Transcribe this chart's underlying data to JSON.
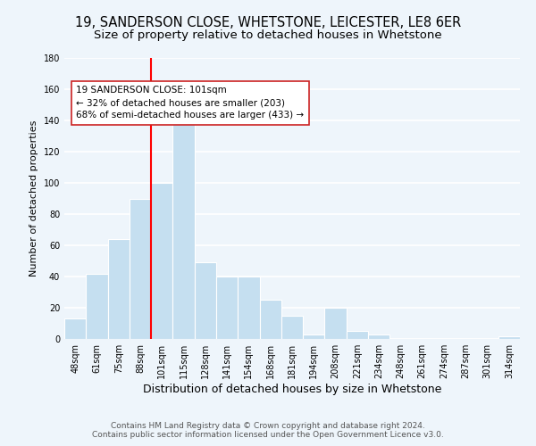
{
  "title_line1": "19, SANDERSON CLOSE, WHETSTONE, LEICESTER, LE8 6ER",
  "title_line2": "Size of property relative to detached houses in Whetstone",
  "xlabel": "Distribution of detached houses by size in Whetstone",
  "ylabel": "Number of detached properties",
  "bin_labels": [
    "48sqm",
    "61sqm",
    "75sqm",
    "88sqm",
    "101sqm",
    "115sqm",
    "128sqm",
    "141sqm",
    "154sqm",
    "168sqm",
    "181sqm",
    "194sqm",
    "208sqm",
    "221sqm",
    "234sqm",
    "248sqm",
    "261sqm",
    "274sqm",
    "287sqm",
    "301sqm",
    "314sqm"
  ],
  "bar_values": [
    13,
    42,
    64,
    90,
    100,
    139,
    49,
    40,
    40,
    25,
    15,
    3,
    20,
    5,
    3,
    0,
    0,
    0,
    0,
    0,
    2
  ],
  "bar_color": "#c5dff0",
  "vline_color": "red",
  "vline_x_index": 4,
  "annotation_lines": [
    "19 SANDERSON CLOSE: 101sqm",
    "← 32% of detached houses are smaller (203)",
    "68% of semi-detached houses are larger (433) →"
  ],
  "ylim": [
    0,
    180
  ],
  "yticks": [
    0,
    20,
    40,
    60,
    80,
    100,
    120,
    140,
    160,
    180
  ],
  "footer_line1": "Contains HM Land Registry data © Crown copyright and database right 2024.",
  "footer_line2": "Contains public sector information licensed under the Open Government Licence v3.0.",
  "background_color": "#eef5fb",
  "grid_color": "#ffffff",
  "title1_fontsize": 10.5,
  "title2_fontsize": 9.5,
  "xlabel_fontsize": 9,
  "ylabel_fontsize": 8,
  "tick_fontsize": 7,
  "footer_fontsize": 6.5,
  "annot_fontsize": 7.5
}
